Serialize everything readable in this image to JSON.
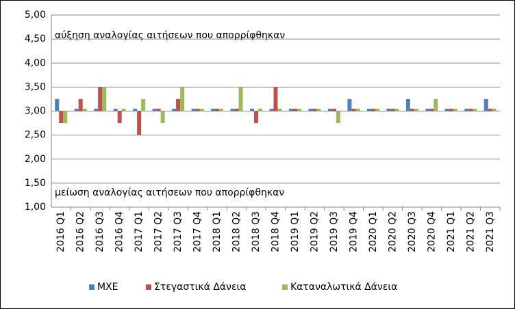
{
  "chart_data": {
    "type": "bar",
    "annotations": [
      "αύξηση αναλογίας αιτήσεων που απορρίφθηκαν",
      "μείωση αναλογίας αιτήσεων που απορρίφθηκαν"
    ],
    "categories": [
      "2016 Q1",
      "2016 Q2",
      "2016 Q3",
      "2016 Q4",
      "2017 Q1",
      "2017 Q2",
      "2017 Q3",
      "2017 Q4",
      "2018 Q1",
      "2018 Q2",
      "2018 Q3",
      "2018 Q4",
      "2019 Q1",
      "2019 Q2",
      "2019 Q3",
      "2019 Q4",
      "2020 Q1",
      "2020 Q2",
      "2020 Q3",
      "2020 Q4",
      "2021 Q1",
      "2021 Q2",
      "2021 Q3"
    ],
    "series": [
      {
        "name": "ΜΧΕ",
        "color": "#4f81bd",
        "values": [
          3.25,
          3.05,
          3.05,
          3.05,
          3.05,
          3.05,
          3.05,
          3.05,
          3.05,
          3.05,
          3.05,
          3.05,
          3.05,
          3.05,
          3.05,
          3.25,
          3.05,
          3.05,
          3.25,
          3.05,
          3.05,
          3.05,
          3.25
        ]
      },
      {
        "name": "Στεγαστικά Δάνεια",
        "color": "#c0504d",
        "values": [
          2.75,
          3.25,
          3.5,
          2.75,
          2.5,
          3.05,
          3.25,
          3.05,
          3.05,
          3.05,
          2.75,
          3.5,
          3.05,
          3.05,
          3.05,
          3.05,
          3.05,
          3.05,
          3.05,
          3.05,
          3.05,
          3.05,
          3.05
        ]
      },
      {
        "name": "Καταναλωτικά Δάνεια",
        "color": "#9bbb59",
        "values": [
          2.75,
          3.05,
          3.5,
          3.05,
          3.25,
          2.75,
          3.5,
          3.05,
          3.05,
          3.5,
          3.05,
          3.05,
          3.05,
          3.05,
          2.75,
          3.05,
          3.05,
          3.05,
          3.05,
          3.25,
          3.05,
          3.05,
          3.05
        ]
      }
    ],
    "bar_base": 3,
    "ylim": [
      1,
      5
    ],
    "yticks": [
      {
        "value": 1,
        "label": "1,00"
      },
      {
        "value": 1.5,
        "label": "1,50"
      },
      {
        "value": 2,
        "label": "2,00"
      },
      {
        "value": 2.5,
        "label": "2,50"
      },
      {
        "value": 3,
        "label": "3,00"
      },
      {
        "value": 3.5,
        "label": "3,50"
      },
      {
        "value": 4,
        "label": "4,00"
      },
      {
        "value": 4.5,
        "label": "4,50"
      },
      {
        "value": 5,
        "label": "5,00"
      }
    ],
    "grid": true,
    "legend": "bottom"
  }
}
